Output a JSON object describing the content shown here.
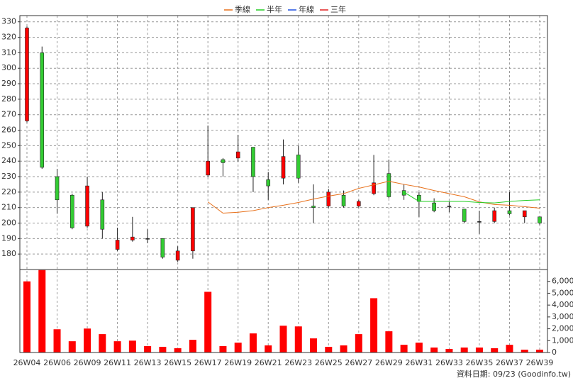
{
  "chart_data": [
    {
      "type": "candlestick",
      "categories": [
        "26W04",
        null,
        "26W06",
        null,
        "26W09",
        null,
        "26W11",
        null,
        "26W13",
        null,
        "26W15",
        null,
        "26W17",
        null,
        "26W19",
        null,
        "26W21",
        null,
        "26W23",
        null,
        "26W25",
        null,
        "26W27",
        null,
        "26W29",
        null,
        "26W31",
        null,
        "26W33",
        null,
        "26W35",
        null,
        "26W37",
        null,
        "26W39"
      ],
      "open": [
        266,
        310,
        230,
        218,
        198,
        215,
        183,
        189,
        190,
        190,
        176,
        182,
        231,
        241,
        242,
        249,
        228,
        229,
        244,
        211,
        211,
        218,
        211,
        219,
        232,
        221,
        218,
        213,
        211,
        209,
        201,
        201,
        208,
        204,
        204
      ],
      "high": [
        327,
        314,
        235,
        219,
        230,
        220,
        197,
        204,
        196,
        190,
        185,
        210,
        263,
        242,
        257,
        249,
        233,
        254,
        250,
        225,
        222,
        221,
        215,
        244,
        241,
        225,
        220,
        216,
        214,
        209,
        208,
        210,
        220,
        208,
        204
      ],
      "low": [
        265,
        235,
        206,
        196,
        197,
        190,
        182,
        188,
        187,
        177,
        175,
        177,
        230,
        230,
        240,
        220,
        215,
        225,
        226,
        200,
        210,
        210,
        210,
        218,
        216,
        215,
        204,
        207,
        207,
        200,
        193,
        200,
        205,
        200,
        199
      ],
      "close": [
        326,
        236,
        215,
        197,
        224,
        196,
        189,
        191,
        190,
        178,
        182,
        210,
        240,
        239,
        246,
        230,
        224,
        243,
        229,
        210,
        220,
        211,
        214,
        226,
        217,
        218,
        214,
        208,
        211,
        201,
        201,
        208,
        206,
        208,
        200
      ],
      "up_color": "#ff0000",
      "down_color": "#33cc33",
      "series": [
        {
          "name": "季線",
          "color": "#e8701a",
          "values": [
            null,
            null,
            null,
            null,
            null,
            null,
            null,
            null,
            null,
            null,
            null,
            null,
            213.7,
            206.4,
            207,
            208,
            210,
            211.5,
            213.3,
            215.5,
            217.4,
            219,
            222.4,
            224.7,
            227,
            225,
            223.3,
            221,
            219,
            217,
            213.7,
            212,
            211.5,
            210.6,
            209.6
          ]
        },
        {
          "name": "半年",
          "color": "#22cc22",
          "values": [
            null,
            null,
            null,
            null,
            null,
            null,
            null,
            null,
            null,
            null,
            null,
            null,
            null,
            null,
            null,
            null,
            null,
            null,
            null,
            null,
            null,
            null,
            null,
            null,
            null,
            220,
            214,
            214,
            214,
            214,
            213.3,
            213,
            214,
            214.6,
            215
          ]
        },
        {
          "name": "年線",
          "color": "#2050e0",
          "values": [
            null,
            null,
            null,
            null,
            null,
            null,
            null,
            null,
            null,
            null,
            null,
            null,
            null,
            null,
            null,
            null,
            null,
            null,
            null,
            null,
            null,
            null,
            null,
            null,
            null,
            null,
            null,
            null,
            null,
            null,
            null,
            null,
            null,
            null,
            null
          ]
        },
        {
          "name": "三年",
          "color": "#e02020",
          "values": [
            null,
            null,
            null,
            null,
            null,
            null,
            null,
            null,
            null,
            null,
            null,
            null,
            null,
            null,
            null,
            null,
            null,
            null,
            null,
            null,
            null,
            null,
            null,
            null,
            null,
            null,
            null,
            null,
            null,
            null,
            null,
            null,
            null,
            null,
            null
          ]
        }
      ],
      "ylim": [
        170,
        334
      ],
      "yticks": [
        180,
        190,
        200,
        210,
        220,
        230,
        240,
        250,
        260,
        270,
        280,
        290,
        300,
        310,
        320,
        330
      ],
      "grid": true
    },
    {
      "type": "bar",
      "color": "#ff0000",
      "values": [
        6000,
        6950,
        1960,
        950,
        2020,
        1550,
        950,
        1000,
        540,
        480,
        360,
        1070,
        5120,
        540,
        830,
        1610,
        600,
        2260,
        2200,
        1190,
        480,
        600,
        1550,
        4580,
        1790,
        650,
        830,
        420,
        300,
        420,
        420,
        360,
        650,
        240,
        240
      ],
      "ylim": [
        0,
        7000
      ],
      "yticks": [
        0,
        {
          "value": 1000,
          "label": "1,000"
        },
        {
          "value": 2000,
          "label": "2,000"
        },
        {
          "value": 3000,
          "label": "3,000"
        },
        {
          "value": 4000,
          "label": "4,000"
        },
        {
          "value": 5000,
          "label": "5,000"
        },
        {
          "value": 6000,
          "label": "6,000"
        }
      ]
    }
  ],
  "footer": "資料日期: 09/23  (Goodinfo.tw)"
}
